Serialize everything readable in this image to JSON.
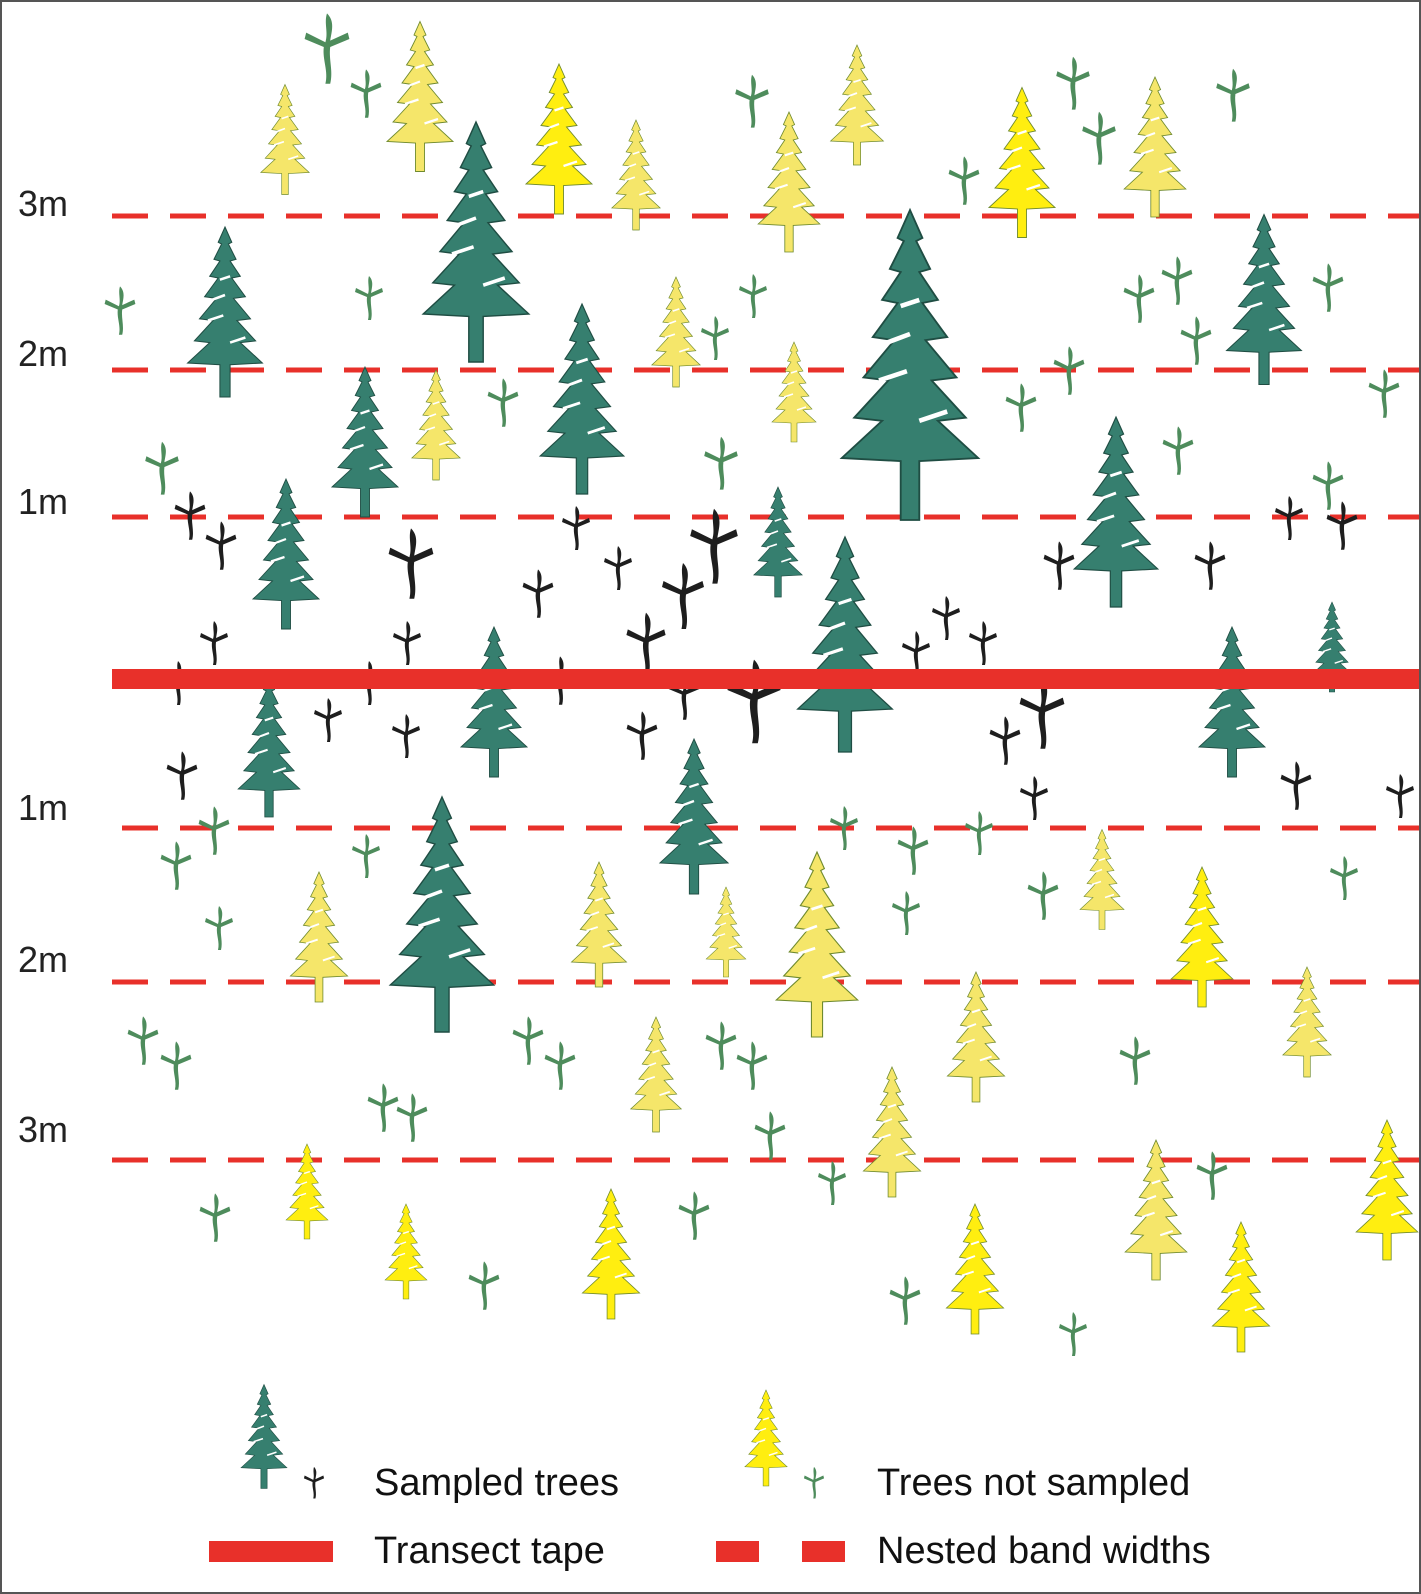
{
  "colors": {
    "sampled_tree": "#367f6f",
    "sampled_seedling": "#1e1e1e",
    "unsampled_tree_bright": "#ffee10",
    "unsampled_tree_pale": "#f5e66a",
    "unsampled_tree_outline": "#6f8a2e",
    "unsampled_seedling": "#4e8c5c",
    "transect": "#e8302a",
    "background": "#ffffff"
  },
  "bands": {
    "upper": [
      "3m",
      "2m",
      "1m"
    ],
    "lower": [
      "1m",
      "2m",
      "3m"
    ]
  },
  "legend": {
    "sampled": "Sampled trees",
    "not_sampled": "Trees not sampled",
    "tape": "Transect tape",
    "bands": "Nested band widths"
  }
}
